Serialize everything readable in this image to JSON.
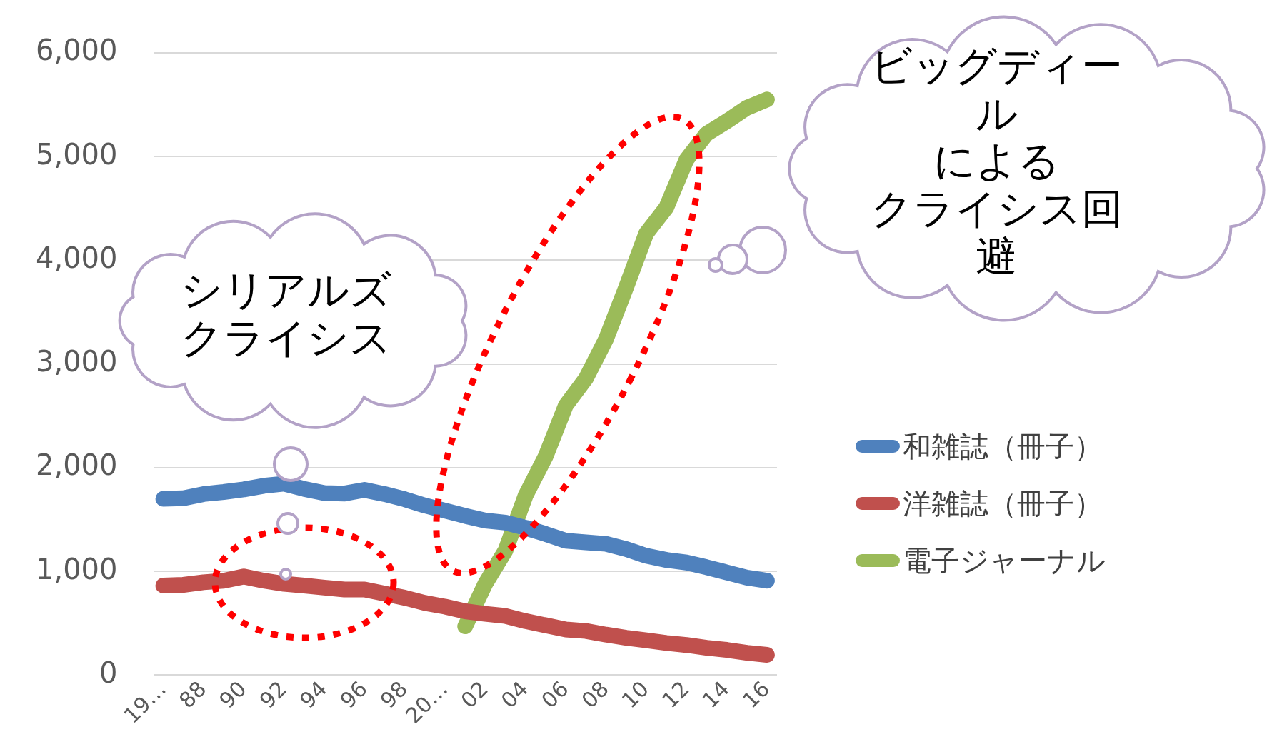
{
  "chart_data": {
    "type": "line",
    "categories": [
      "19…",
      null,
      "88",
      null,
      "90",
      null,
      "92",
      null,
      "94",
      null,
      "96",
      null,
      "98",
      null,
      "20…",
      null,
      "02",
      null,
      "04",
      null,
      "06",
      null,
      "08",
      null,
      "10",
      null,
      "12",
      null,
      "14",
      null,
      "16"
    ],
    "series": [
      {
        "name": "和雑誌（冊子）",
        "color": "#4f81bd",
        "values": [
          1700,
          1705,
          1745,
          1765,
          1790,
          1825,
          1845,
          1795,
          1755,
          1750,
          1785,
          1745,
          1695,
          1635,
          1585,
          1535,
          1490,
          1470,
          1420,
          1360,
          1295,
          1280,
          1265,
          1215,
          1150,
          1110,
          1085,
          1040,
          990,
          940,
          910
        ]
      },
      {
        "name": "洋雑誌（冊子）",
        "color": "#c0504d",
        "values": [
          863,
          870,
          895,
          910,
          950,
          910,
          880,
          863,
          843,
          825,
          825,
          785,
          745,
          695,
          660,
          615,
          590,
          570,
          520,
          480,
          440,
          425,
          390,
          360,
          335,
          310,
          290,
          263,
          243,
          215,
          195
        ]
      },
      {
        "name": "電子ジャーナル",
        "color": "#9bbb59",
        "values": [
          null,
          null,
          null,
          null,
          null,
          null,
          null,
          null,
          null,
          null,
          null,
          null,
          null,
          null,
          null,
          470,
          880,
          1200,
          1730,
          2110,
          2600,
          2860,
          3240,
          3740,
          4260,
          4510,
          4970,
          5220,
          5340,
          5470,
          5550
        ]
      }
    ],
    "ylim": [
      0,
      6000
    ],
    "yticks": [
      {
        "value": 0,
        "label": "0"
      },
      {
        "value": 1000,
        "label": "1,000"
      },
      {
        "value": 2000,
        "label": "2,000"
      },
      {
        "value": 3000,
        "label": "3,000"
      },
      {
        "value": 4000,
        "label": "4,000"
      },
      {
        "value": 5000,
        "label": "5,000"
      },
      {
        "value": 6000,
        "label": "6,000"
      }
    ],
    "grid": "y",
    "legend": "right",
    "marker": "none",
    "line_style": "solid",
    "annotations": [
      "シリアルズクライシス",
      "ビッグディールによるクライシス回避"
    ]
  }
}
